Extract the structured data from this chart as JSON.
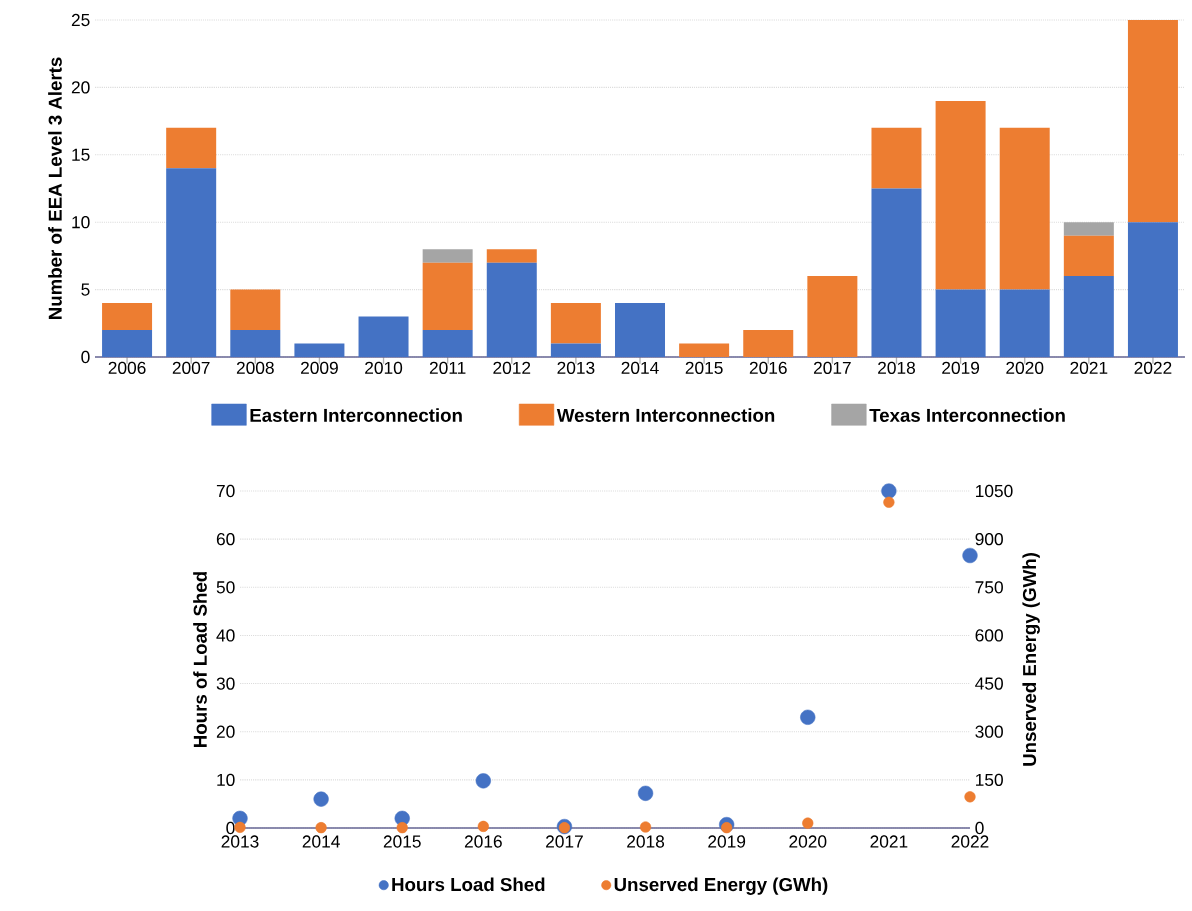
{
  "chart_data": [
    {
      "type": "bar",
      "stacked": true,
      "ylabel": "Number of EEA Level 3 Alerts",
      "categories": [
        "2006",
        "2007",
        "2008",
        "2009",
        "2010",
        "2011",
        "2012",
        "2013",
        "2014",
        "2015",
        "2016",
        "2017",
        "2018",
        "2019",
        "2020",
        "2021",
        "2022"
      ],
      "series": [
        {
          "name": "Eastern Interconnection",
          "color": "#4472c4",
          "values": [
            2,
            14,
            2,
            1,
            3,
            2,
            7,
            1,
            4,
            null,
            null,
            null,
            12.5,
            5,
            5,
            6,
            10
          ]
        },
        {
          "name": "Western Interconnection",
          "color": "#ed7d31",
          "values": [
            2,
            3,
            3,
            null,
            null,
            5,
            1,
            3,
            null,
            1,
            2,
            6,
            4.5,
            14,
            12,
            3,
            15
          ]
        },
        {
          "name": "Texas Interconnection",
          "color": "#a5a5a5",
          "values": [
            null,
            null,
            null,
            null,
            null,
            1,
            null,
            null,
            null,
            null,
            null,
            null,
            null,
            null,
            null,
            1,
            null
          ]
        }
      ],
      "ylim": [
        0,
        25
      ],
      "yticks": [
        0,
        5,
        10,
        15,
        20,
        25
      ],
      "grid": "y",
      "legend": "bottom"
    },
    {
      "type": "scatter",
      "x": [
        2013,
        2014,
        2015,
        2016,
        2017,
        2018,
        2019,
        2020,
        2021,
        2022
      ],
      "xlim": [
        2013,
        2022
      ],
      "xticks": [
        2013,
        2014,
        2015,
        2016,
        2017,
        2018,
        2019,
        2020,
        2021,
        2022
      ],
      "ylabel": "Hours of Load Shed",
      "y2label": "Unserved Energy (GWh)",
      "ylim": [
        0,
        70
      ],
      "yticks": [
        0,
        10,
        20,
        30,
        40,
        50,
        60,
        70
      ],
      "y2lim": [
        0,
        1050
      ],
      "y2ticks": [
        0,
        150,
        300,
        450,
        600,
        750,
        900,
        1050
      ],
      "grid": "y",
      "legend": "bottom",
      "series": [
        {
          "name": "Hours Load Shed",
          "color": "#4472c4",
          "values": [
            2,
            6,
            2,
            9.8,
            0.3,
            7.2,
            0.7,
            23,
            70,
            56.6
          ]
        },
        {
          "name": "Unserved Energy (GWh)",
          "color": "#ed7d31",
          "axis": "y2",
          "values": [
            2,
            1,
            1,
            5,
            1,
            3,
            1,
            15,
            1015,
            97
          ]
        }
      ]
    }
  ]
}
